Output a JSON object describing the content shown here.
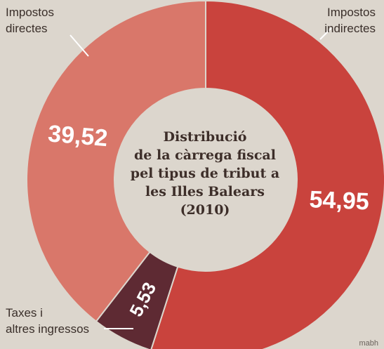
{
  "chart_data": {
    "type": "pie",
    "donut": true,
    "title": "Distribució de la càrrega fiscal pel tipus de tribut a les Illes Balears (2010)",
    "title_lines": [
      "Distribució",
      "de la càrrega fiscal",
      "pel tipus de tribut a",
      "les Illes Balears",
      "(2010)"
    ],
    "slices": [
      {
        "label_lines": [
          "Impostos",
          "indirectes"
        ],
        "value": 54.95,
        "display": "54,95",
        "color": "#c9433d"
      },
      {
        "label_lines": [
          "Taxes i",
          "altres ingressos"
        ],
        "value": 5.53,
        "display": "5,53",
        "color": "#5e2a33"
      },
      {
        "label_lines": [
          "Impostos",
          "directes"
        ],
        "value": 39.52,
        "display": "39,52",
        "color": "#d9776a"
      }
    ],
    "legend": "labels-outside"
  },
  "credit": "mabh"
}
